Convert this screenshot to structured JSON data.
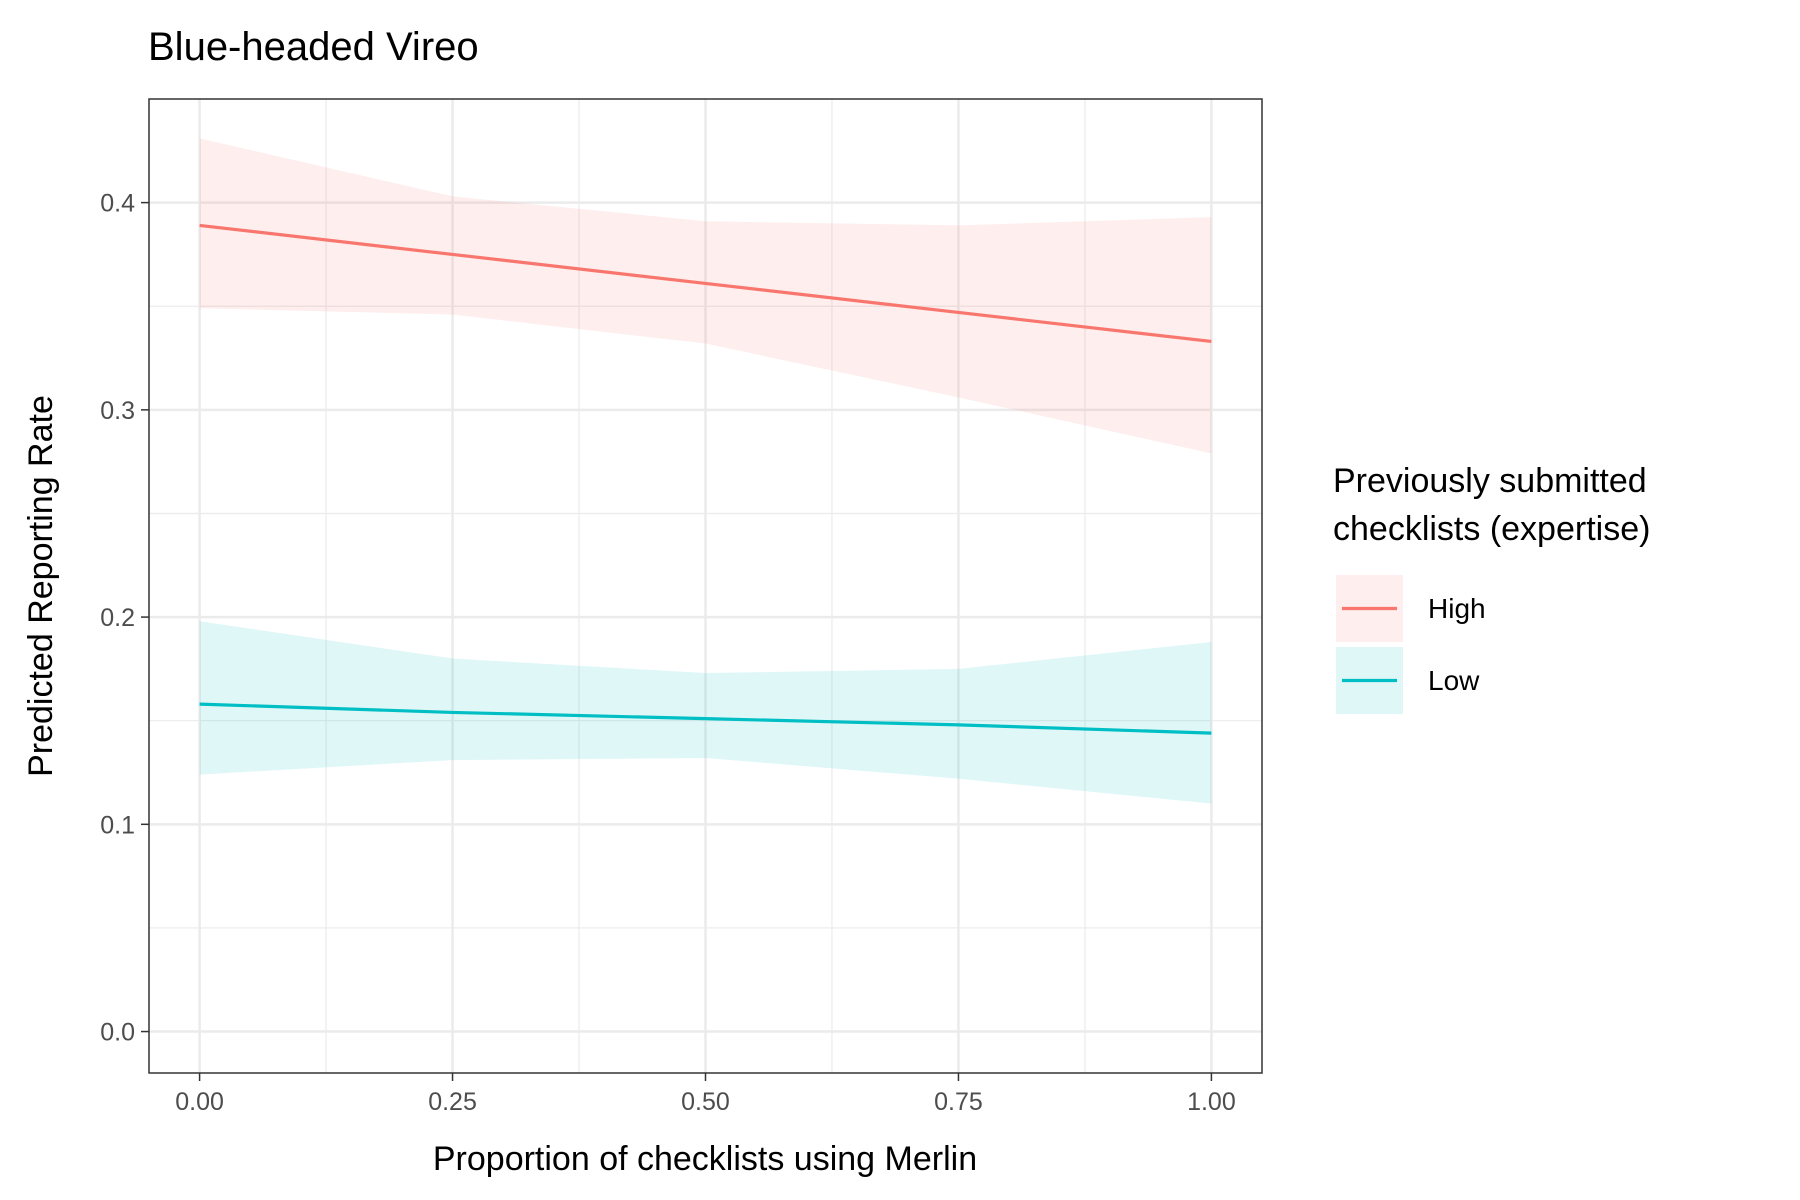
{
  "chart_data": {
    "type": "line",
    "title": "Blue-headed Vireo",
    "xlabel": "Proportion of checklists using Merlin",
    "ylabel": "Predicted Reporting Rate",
    "xlim": [
      -0.05,
      1.05
    ],
    "ylim": [
      -0.02,
      0.45
    ],
    "x_ticks": [
      0,
      0.25,
      0.5,
      0.75,
      1.0
    ],
    "x_tick_labels": [
      "0.00",
      "0.25",
      "0.50",
      "0.75",
      "1.00"
    ],
    "y_ticks": [
      0,
      0.1,
      0.2,
      0.3,
      0.4
    ],
    "y_tick_labels": [
      "0.0",
      "0.1",
      "0.2",
      "0.3",
      "0.4"
    ],
    "grid": true,
    "legend": {
      "title_lines": [
        "Previously submitted",
        "checklists (expertise)"
      ],
      "position": "right"
    },
    "series": [
      {
        "name": "High",
        "color": "#F8766D",
        "x": [
          0,
          0.25,
          0.5,
          0.75,
          1.0
        ],
        "y": [
          0.389,
          0.375,
          0.361,
          0.347,
          0.333
        ],
        "ci_lower": [
          0.349,
          0.346,
          0.332,
          0.306,
          0.279
        ],
        "ci_upper": [
          0.431,
          0.403,
          0.391,
          0.389,
          0.393
        ]
      },
      {
        "name": "Low",
        "color": "#00BFC4",
        "x": [
          0,
          0.25,
          0.5,
          0.75,
          1.0
        ],
        "y": [
          0.158,
          0.154,
          0.151,
          0.148,
          0.144
        ],
        "ci_lower": [
          0.124,
          0.131,
          0.132,
          0.122,
          0.11
        ],
        "ci_upper": [
          0.198,
          0.18,
          0.173,
          0.175,
          0.188
        ]
      }
    ]
  }
}
